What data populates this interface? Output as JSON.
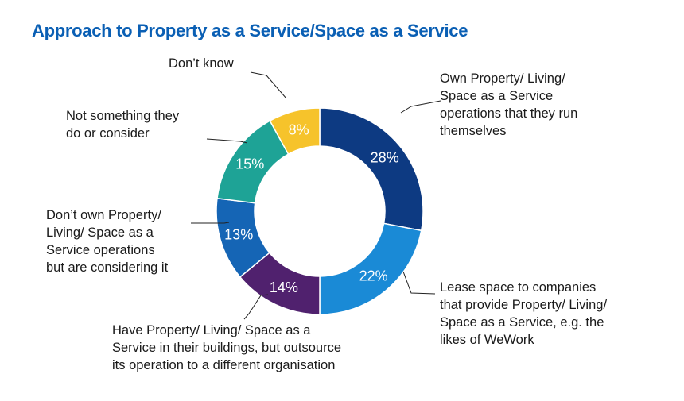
{
  "title": "Approach to Property as a Service/Space as a Service",
  "colors": {
    "title": "#0a5fb4",
    "own_operations": "#0d3a82",
    "lease_space": "#1a8ad6",
    "outsource": "#50216e",
    "considering": "#1565b5",
    "not_considered": "#1ea396",
    "dont_know": "#f6c32b"
  },
  "chart_data": {
    "type": "pie",
    "subtype": "donut",
    "title": "Approach to Property as a Service/Space as a Service",
    "unit": "%",
    "series": [
      {
        "key": "own_operations",
        "label_lines": [
          "Own Property/ Living/",
          "Space as a Service",
          "operations that they run",
          "themselves"
        ],
        "value": 28,
        "value_label": "28%",
        "color": "#0d3a82"
      },
      {
        "key": "lease_space",
        "label_lines": [
          "Lease space to companies",
          "that provide Property/ Living/",
          "Space as a Service, e.g. the",
          "likes of WeWork"
        ],
        "value": 22,
        "value_label": "22%",
        "color": "#1a8ad6"
      },
      {
        "key": "outsource",
        "label_lines": [
          "Have Property/ Living/ Space as a",
          "Service in their buildings, but outsource",
          "its operation to a different organisation"
        ],
        "value": 14,
        "value_label": "14%",
        "color": "#50216e"
      },
      {
        "key": "considering",
        "label_lines": [
          "Don’t own Property/",
          "Living/ Space as a",
          "Service operations",
          "but are considering it"
        ],
        "value": 13,
        "value_label": "13%",
        "color": "#1565b5"
      },
      {
        "key": "not_considered",
        "label_lines": [
          "Not something they",
          "do or consider"
        ],
        "value": 15,
        "value_label": "15%",
        "color": "#1ea396"
      },
      {
        "key": "dont_know",
        "label_lines": [
          "Don’t know"
        ],
        "value": 8,
        "value_label": "8%",
        "color": "#f6c32b"
      }
    ]
  }
}
